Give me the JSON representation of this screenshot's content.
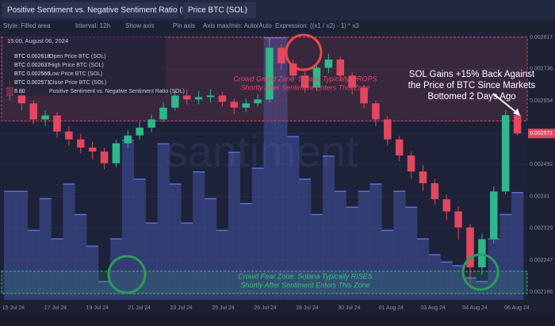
{
  "ui": {
    "tabs": [
      "Positive Sentiment vs. Negative Sentiment Ratio (SOL)",
      "Price BTC (SOL)"
    ],
    "toolbar": [
      "Style: Filled area",
      "Interval: 12h",
      "Show axis",
      "Pin axis",
      "Axis max/min: Auto/Auto",
      "Expression: ((x1 / x2) - 1) * x3"
    ]
  },
  "chart_data": {
    "type": "candlestick",
    "watermark": "santiment",
    "xticks": [
      "15 Jul 24",
      "17 Jul 24",
      "19 Jul 24",
      "21 Jul 24",
      "23 Jul 24",
      "25 Jul 24",
      "26 Jul 24",
      "28 Jul 24",
      "30 Jul 24",
      "01 Aug 24",
      "03 Aug 24",
      "04 Aug 24",
      "06 Aug 24"
    ],
    "open": [
      0.00269,
      0.002668,
      0.002648,
      0.002607,
      0.002617,
      0.002576,
      0.002556,
      0.002535,
      0.002525,
      0.002495,
      0.002546,
      0.002566,
      0.002586,
      0.002607,
      0.002637,
      0.002668,
      0.002658,
      0.002664,
      0.002668,
      0.002652,
      0.002637,
      0.002648,
      0.002658,
      0.00279,
      0.00275,
      0.002719,
      0.002688,
      0.002739,
      0.00276,
      0.002719,
      0.002688,
      0.002648,
      0.002607,
      0.002556,
      0.002515,
      0.002474,
      0.002444,
      0.002403,
      0.002372,
      0.002331,
      0.002229,
      0.002301,
      0.002423,
      0.002618
    ],
    "high": [
      0.002705,
      0.00268,
      0.002655,
      0.00263,
      0.002625,
      0.00259,
      0.00257,
      0.00255,
      0.002535,
      0.002555,
      0.00258,
      0.0026,
      0.00262,
      0.00265,
      0.00268,
      0.002685,
      0.00268,
      0.002685,
      0.002678,
      0.00266,
      0.00266,
      0.002672,
      0.002817,
      0.0028,
      0.00276,
      0.00273,
      0.00275,
      0.002775,
      0.002768,
      0.002728,
      0.002695,
      0.002655,
      0.002615,
      0.002565,
      0.002525,
      0.00249,
      0.002455,
      0.002415,
      0.002385,
      0.00234,
      0.002315,
      0.002435,
      0.00263,
      0.002637
    ],
    "low": [
      0.002655,
      0.00263,
      0.002595,
      0.00259,
      0.00256,
      0.00254,
      0.00252,
      0.002505,
      0.00248,
      0.002485,
      0.002535,
      0.002555,
      0.002575,
      0.0026,
      0.00263,
      0.002645,
      0.002645,
      0.00265,
      0.00264,
      0.00262,
      0.002625,
      0.00264,
      0.00265,
      0.002735,
      0.002705,
      0.002675,
      0.00268,
      0.002725,
      0.002705,
      0.00267,
      0.002635,
      0.00259,
      0.00254,
      0.0025,
      0.002455,
      0.002425,
      0.00239,
      0.00235,
      0.0023,
      0.00219,
      0.00221,
      0.00229,
      0.002415,
      0.002566
    ],
    "close": [
      0.002668,
      0.002648,
      0.002607,
      0.002617,
      0.002576,
      0.002556,
      0.002535,
      0.002525,
      0.002495,
      0.002546,
      0.002566,
      0.002586,
      0.002607,
      0.002637,
      0.002668,
      0.002658,
      0.002664,
      0.002668,
      0.002652,
      0.002637,
      0.002648,
      0.002658,
      0.00279,
      0.00275,
      0.002719,
      0.002688,
      0.002739,
      0.00276,
      0.002719,
      0.002688,
      0.002648,
      0.002607,
      0.002556,
      0.002515,
      0.002474,
      0.002444,
      0.002403,
      0.002372,
      0.002331,
      0.002229,
      0.002301,
      0.002423,
      0.002618,
      0.002571
    ],
    "colors": {
      "up": "#2fb88a",
      "down": "#e2475f"
    },
    "ylim": [
      0.002146,
      0.002831
    ],
    "yticks": [
      0.002166,
      0.002247,
      0.002329,
      0.00241,
      0.002492,
      0.002571,
      0.002654,
      0.002736,
      0.002817
    ],
    "current_price": 0.002571,
    "y2lim": [
      0,
      22
    ],
    "sentiment": {
      "name": "Positive Sentiment vs. Negative Sentiment Ratio (SOL)",
      "axis": "y2",
      "color": "#5a6de0",
      "values": [
        8.9,
        8.9,
        5.7,
        8.3,
        5.0,
        9.5,
        7.0,
        4.4,
        1.5,
        5.0,
        13.1,
        9.9,
        6.3,
        12.8,
        9.5,
        6.3,
        10.5,
        8.3,
        5.7,
        12.1,
        7.9,
        10.8,
        21.5,
        21.5,
        13.4,
        9.9,
        7.0,
        11.8,
        8.9,
        7.6,
        8.9,
        9.5,
        5.7,
        8.9,
        7.6,
        5.0,
        3.7,
        3.1,
        2.8,
        1.8,
        1.5,
        5.0,
        7.0,
        8.8
      ]
    },
    "readout": {
      "time": "15:00, August 06, 2024",
      "lines": [
        [
          "BTC 0.002618",
          "Open Price BTC (SOL)"
        ],
        [
          "BTC 0.002637",
          "High Price BTC (SOL)"
        ],
        [
          "BTC 0.002566",
          "Low Price BTC (SOL)"
        ],
        [
          "BTC 0.002571",
          "Close Price BTC (SOL)"
        ],
        [
          "8.80",
          "Positive Sentiment vs. Negative Sentiment Ratio (SOL)"
        ]
      ]
    },
    "zones": [
      {
        "ylim": [
          0.002603,
          0.002817
        ],
        "color": "#e2475f",
        "lines": [
          "Crowd Greed Zone: Solana Typically DROPS",
          "Shortly After Sentiment Enters This Zone"
        ]
      },
      {
        "ylim": [
          0.002162,
          0.002219
        ],
        "color": "#39c07a",
        "lines": [
          "Crowd Fear Zone: Solana Typically RISES",
          "Shortly After Sentiment Enters This Zone"
        ]
      }
    ],
    "annotation": [
      "SOL Gains +15% Back Against",
      "the Price of BTC Since Markets",
      "Bottomed 2 Days Ago"
    ]
  }
}
